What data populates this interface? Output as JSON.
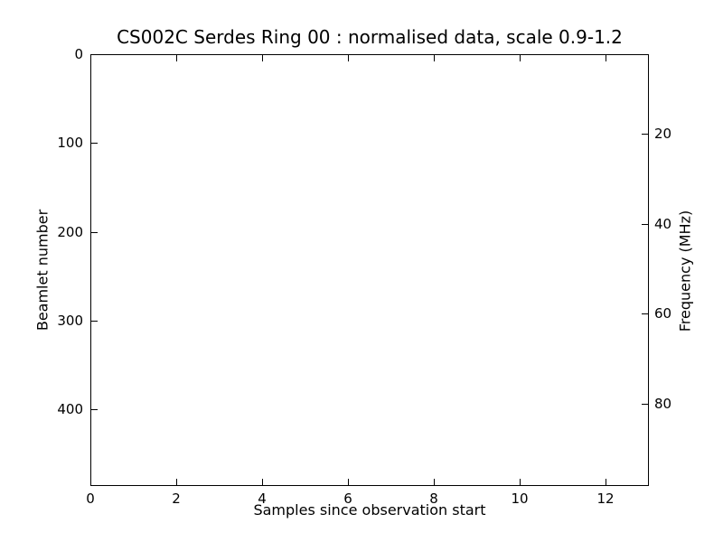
{
  "figure": {
    "background_color": "#ffffff",
    "frame_color": "#000000",
    "text_color": "#000000"
  },
  "chart_data": {
    "type": "heatmap",
    "title": "CS002C Serdes Ring 00 : normalised data, scale 0.9-1.2",
    "xlabel": "Samples since observation start",
    "ylabel_left": "Beamlet number",
    "ylabel_right": "Frequency (MHz)",
    "xlim": [
      0,
      13
    ],
    "ylim_left": [
      0,
      486.5
    ],
    "ylim_right": [
      2.3,
      98.3
    ],
    "y_axis_inverted": true,
    "x_ticks": [
      0,
      2,
      4,
      6,
      8,
      10,
      12
    ],
    "y_ticks_left": [
      0,
      100,
      200,
      300,
      400
    ],
    "y_ticks_right": [
      20,
      40,
      60,
      80
    ],
    "grid": false,
    "legend": null,
    "tick_direction": "in",
    "values": [],
    "note": "plot area is blank white; no data pixels are visible"
  }
}
